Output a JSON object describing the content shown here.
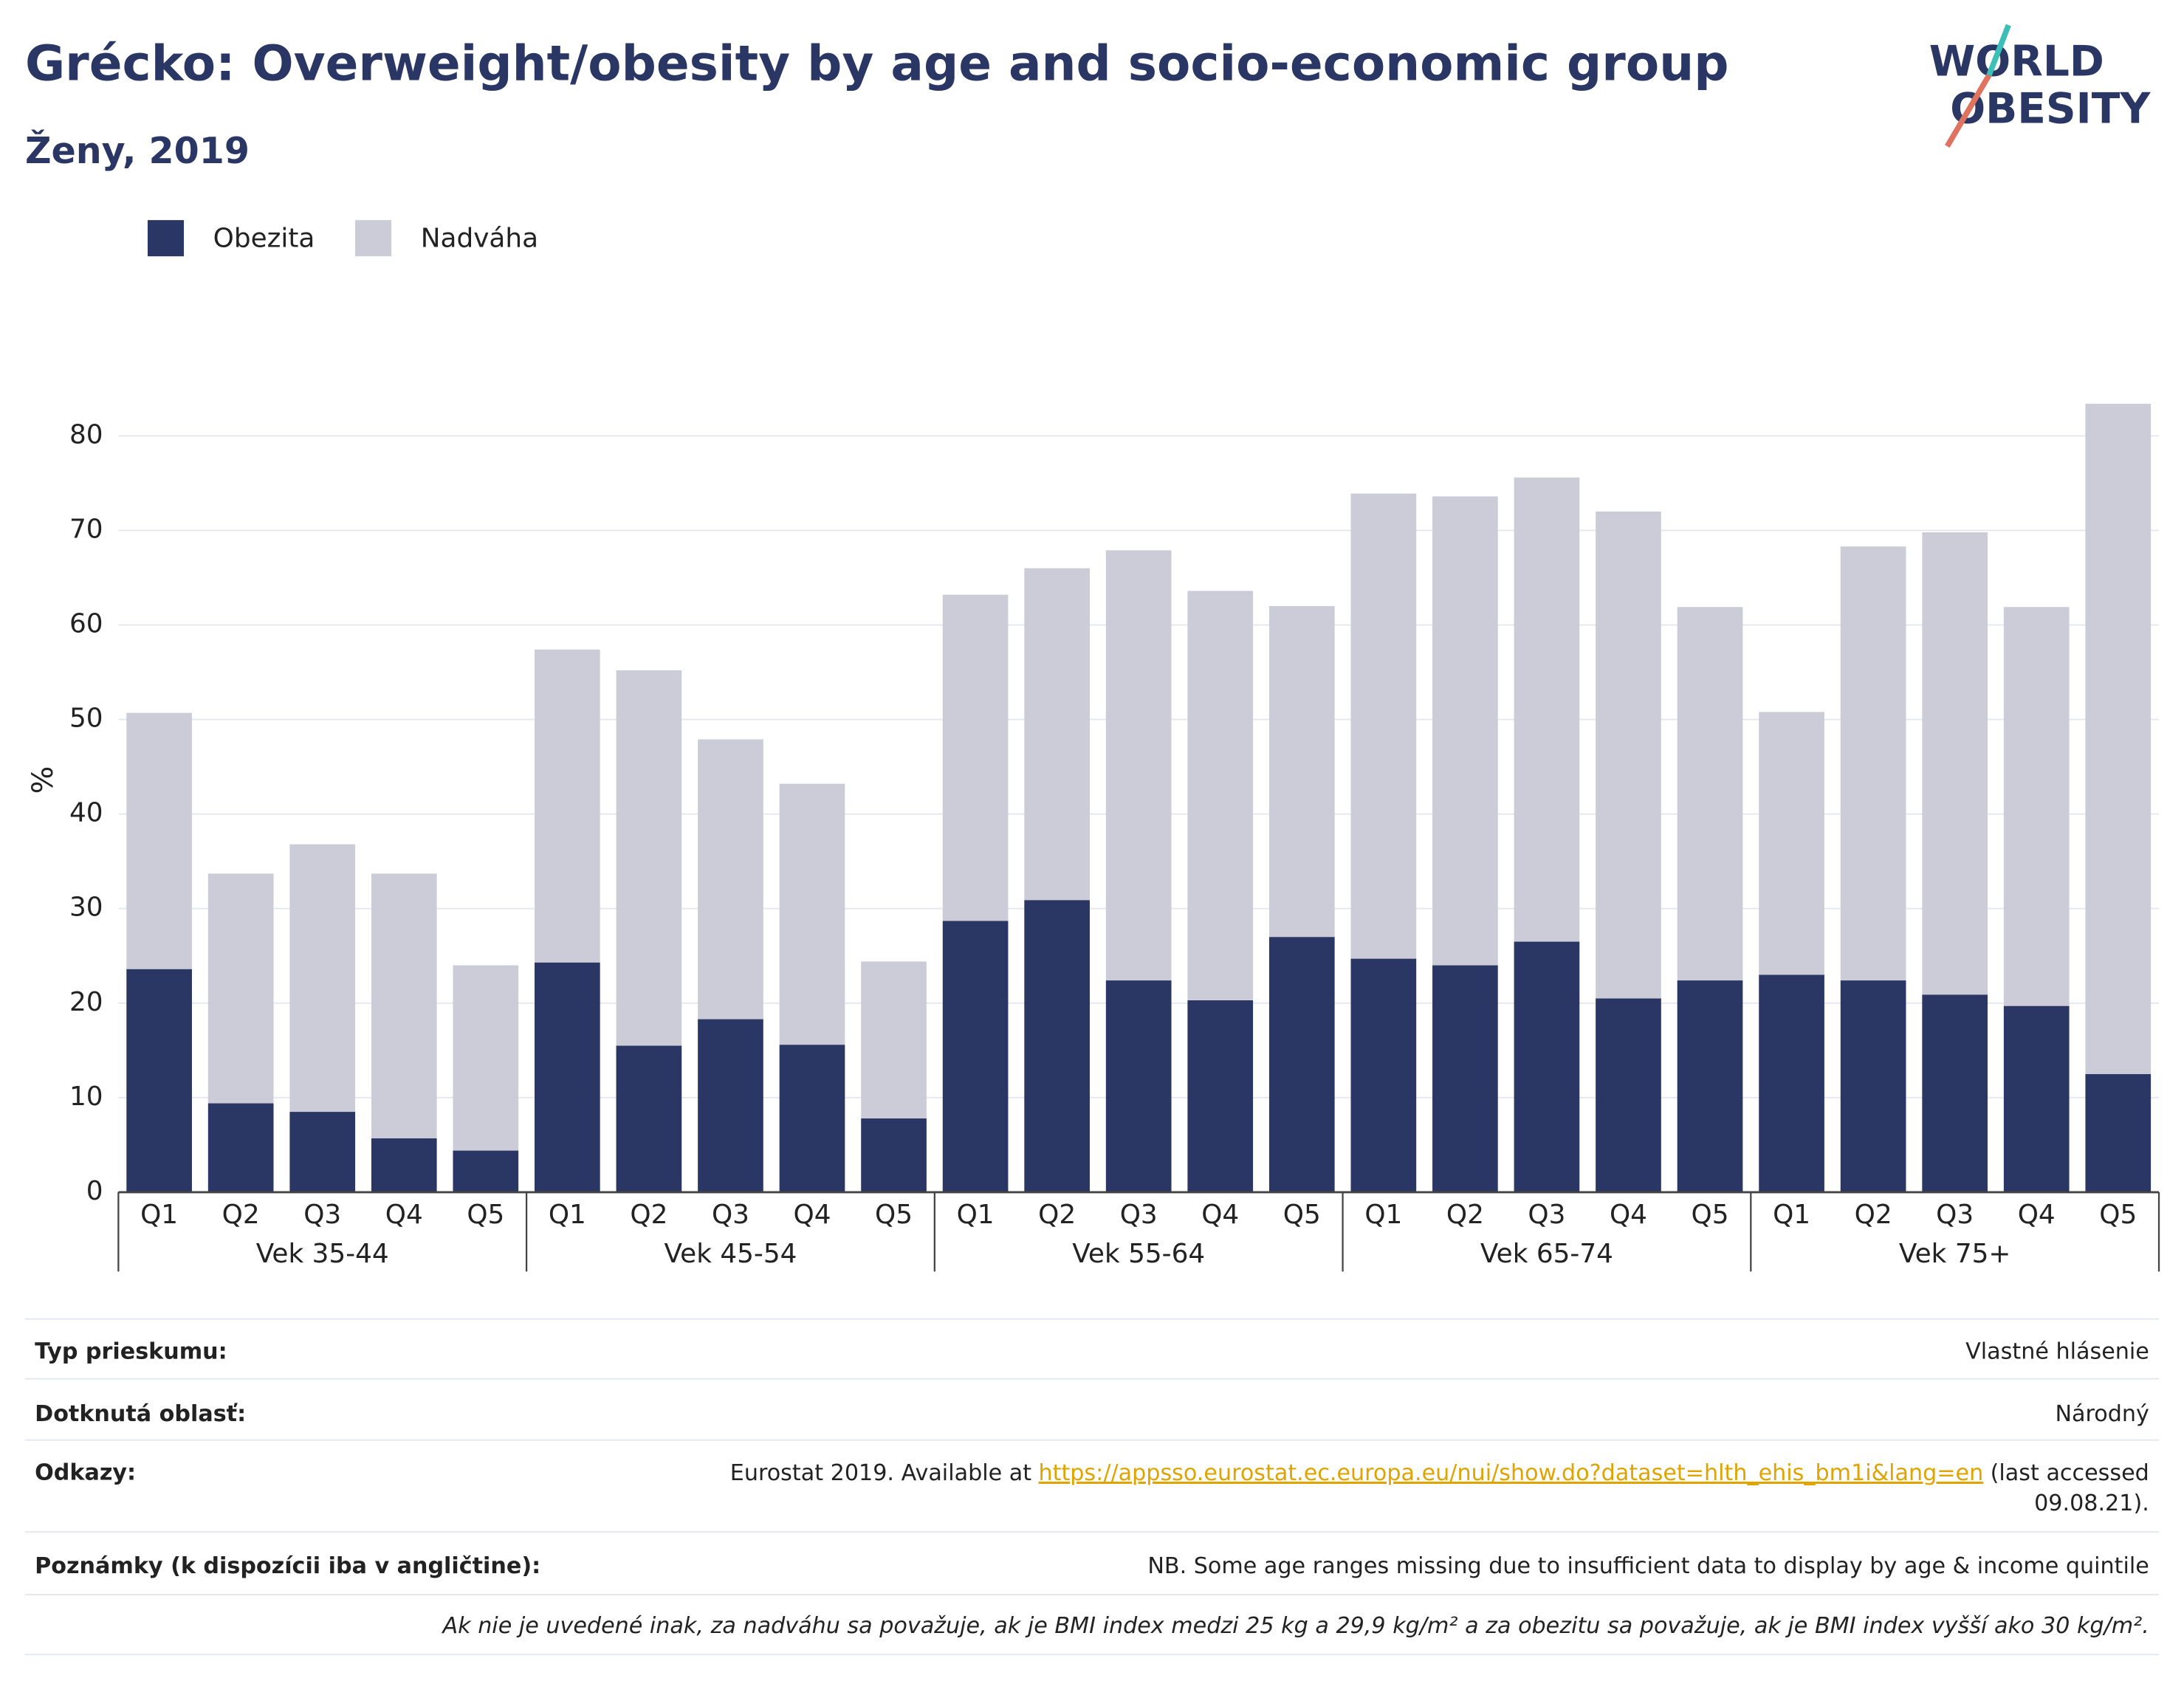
{
  "chart_data": {
    "type": "stacked_bar",
    "title": "Grécko: Overweight/obesity by age and socio-economic group",
    "subtitle": "Ženy, 2019",
    "y_label": "%",
    "categories": [
      "Q1",
      "Q2",
      "Q3",
      "Q4",
      "Q5",
      "Q1",
      "Q2",
      "Q3",
      "Q4",
      "Q5",
      "Q1",
      "Q2",
      "Q3",
      "Q4",
      "Q5",
      "Q1",
      "Q2",
      "Q3",
      "Q4",
      "Q5",
      "Q1",
      "Q2",
      "Q3",
      "Q4",
      "Q5"
    ],
    "groups": [
      "Vek 35-44",
      "Vek 45-54",
      "Vek 55-64",
      "Vek 65-74",
      "Vek 75+"
    ],
    "series": [
      {
        "name": "Obezita",
        "color": "#2a3663",
        "values": [
          23.6,
          9.4,
          8.5,
          5.7,
          4.4,
          24.3,
          15.5,
          18.3,
          15.6,
          7.8,
          28.7,
          30.9,
          22.4,
          20.3,
          27.0,
          24.7,
          24.0,
          26.5,
          20.5,
          22.4,
          23.0,
          22.4,
          20.9,
          19.7,
          12.5
        ]
      },
      {
        "name": "Nadváha",
        "color": "#cbccd8",
        "values": [
          27.1,
          24.3,
          28.3,
          28.0,
          19.6,
          33.1,
          39.7,
          29.6,
          27.6,
          16.6,
          34.5,
          35.1,
          45.5,
          43.3,
          35.0,
          49.2,
          49.6,
          49.1,
          51.5,
          39.5,
          27.8,
          45.9,
          48.9,
          42.2,
          70.9
        ]
      }
    ],
    "ylim": [
      0,
      85
    ],
    "yticks": [
      0,
      10,
      20,
      30,
      40,
      50,
      60,
      70,
      80
    ],
    "grid": true
  },
  "logo": [
    "WORLD",
    "OBESITY"
  ],
  "footer": {
    "rows": [
      {
        "label": "Typ prieskumu:",
        "value": "Vlastné hlásenie"
      },
      {
        "label": "Dotknutá oblasť:",
        "value": "Národný"
      },
      {
        "label": "Odkazy:",
        "value": {
          "text": "Eurostat 2019. Available at",
          "link": "https://appsso.eurostat.ec.europa.eu/nui/show.do?dataset=hlth_ehis_bm1i&lang=en",
          "after": [
            "(last accessed",
            "09.08.21)."
          ]
        }
      },
      {
        "label": "Poznámky (k dispozícii iba v angličtine):",
        "value": "NB. Some age ranges missing due to insufficient data to display by age & income quintile"
      }
    ],
    "note": "Ak nie je uvedené inak, za nadváhu sa považuje, ak je BMI index medzi 25 kg a 29,9 kg/m² a za obezitu sa považuje, ak je BMI index vyšší ako 30 kg/m²."
  }
}
